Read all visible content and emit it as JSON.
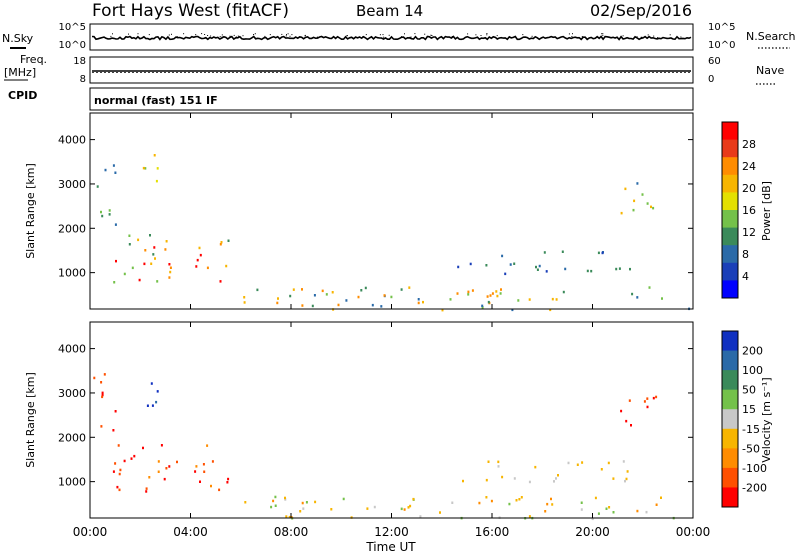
{
  "header": {
    "station": "Fort Hays West (fitACF)",
    "beam": "Beam 14",
    "date": "02/Sep/2016"
  },
  "summary": {
    "nsky_label": "N.Sky",
    "nsky_ticks": [
      "10^5",
      "10^0"
    ],
    "nsearch_label": "N.Search",
    "nsearch_ticks": [
      "10^5",
      "10^0"
    ],
    "freq_label": "Freq.",
    "freq_unit": "[MHz]",
    "freq_ticks": [
      "18",
      "8"
    ],
    "nave_label": "Nave",
    "nave_ticks": [
      "60",
      "0"
    ],
    "cpid_label": "CPID",
    "cpid_text": "normal (fast) 151 IF"
  },
  "chart_data": [
    {
      "type": "heatmap",
      "name": "power",
      "ylabel": "Slant Range [km]",
      "y_ticks": [
        "4000",
        "3000",
        "2000",
        "1000"
      ],
      "ylim": [
        180,
        4600
      ],
      "xlim": [
        0,
        24
      ],
      "colorbar": {
        "label": "Power [dB]",
        "ticks": [
          "28",
          "24",
          "20",
          "16",
          "12",
          "8",
          "4"
        ],
        "colors": [
          "#ff0000",
          "#e83a1a",
          "#ff8c00",
          "#f7b500",
          "#e4e000",
          "#74c14a",
          "#3a8a5a",
          "#2a6aa8",
          "#1a3fb8",
          "#0000ff"
        ]
      },
      "regions": [
        {
          "t0": 0.9,
          "t1": 5.6,
          "r0": 800,
          "r1": 1900,
          "c": [
            "#ff0000",
            "#ff8c00",
            "#f7b500",
            "#74c14a",
            "#3a8a5a"
          ]
        },
        {
          "t0": 0.1,
          "t1": 1.0,
          "r0": 1900,
          "r1": 3500,
          "c": [
            "#3a8a5a",
            "#74c14a",
            "#2a6aa8"
          ]
        },
        {
          "t0": 2.0,
          "t1": 2.8,
          "r0": 2700,
          "r1": 3700,
          "c": [
            "#f7b500",
            "#74c14a",
            "#e4e000"
          ]
        },
        {
          "t0": 14.5,
          "t1": 21.5,
          "r0": 1000,
          "r1": 1500,
          "c": [
            "#2a6aa8",
            "#1a3fb8",
            "#3a8a5a"
          ]
        },
        {
          "t0": 21.0,
          "t1": 22.5,
          "r0": 2200,
          "r1": 3200,
          "c": [
            "#74c14a",
            "#f7b500",
            "#2a6aa8"
          ]
        },
        {
          "t0": 6.0,
          "t1": 24.0,
          "r0": 180,
          "r1": 700,
          "c": [
            "#2a6aa8",
            "#f7b500",
            "#74c14a",
            "#ff8c00",
            "#3a8a5a"
          ]
        }
      ]
    },
    {
      "type": "heatmap",
      "name": "velocity",
      "ylabel": "Slant Range [km]",
      "xlabel": "Time UT",
      "x_ticks": [
        "00:00",
        "04:00",
        "08:00",
        "12:00",
        "16:00",
        "20:00",
        "00:00"
      ],
      "y_ticks": [
        "4000",
        "3000",
        "2000",
        "1000"
      ],
      "ylim": [
        180,
        4600
      ],
      "xlim": [
        0,
        24
      ],
      "colorbar": {
        "label": "Velocity [m s⁻¹]",
        "ticks": [
          "200",
          "100",
          "50",
          "15",
          "-15",
          "-50",
          "-100",
          "-200"
        ],
        "colors": [
          "#1030c0",
          "#2a6aa8",
          "#3a8a5a",
          "#74c14a",
          "#c8c8c8",
          "#f7b500",
          "#ff8c00",
          "#ff5000",
          "#ff0000"
        ]
      },
      "regions": [
        {
          "t0": 0.9,
          "t1": 5.6,
          "r0": 800,
          "r1": 1900,
          "c": [
            "#ff0000",
            "#ff5000",
            "#ff0000",
            "#ff8c00"
          ]
        },
        {
          "t0": 0.1,
          "t1": 1.0,
          "r0": 1900,
          "r1": 3500,
          "c": [
            "#ff0000",
            "#ff5000"
          ]
        },
        {
          "t0": 2.0,
          "t1": 2.8,
          "r0": 2700,
          "r1": 3700,
          "c": [
            "#1030c0",
            "#2a6aa8"
          ]
        },
        {
          "t0": 14.5,
          "t1": 21.5,
          "r0": 1000,
          "r1": 1500,
          "c": [
            "#c8c8c8",
            "#f7b500"
          ]
        },
        {
          "t0": 21.0,
          "t1": 22.5,
          "r0": 2200,
          "r1": 3200,
          "c": [
            "#ff0000",
            "#ff5000"
          ]
        },
        {
          "t0": 6.0,
          "t1": 24.0,
          "r0": 180,
          "r1": 700,
          "c": [
            "#f7b500",
            "#c8c8c8",
            "#74c14a",
            "#ff8c00"
          ]
        }
      ]
    }
  ]
}
